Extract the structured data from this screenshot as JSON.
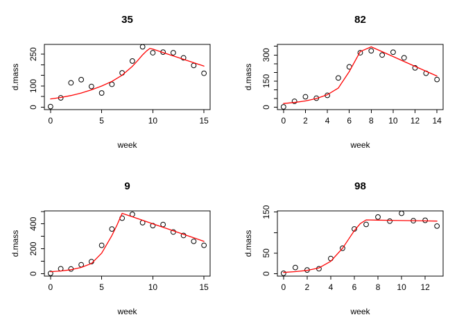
{
  "figure": {
    "background": "#ffffff",
    "rows": 2,
    "cols": 2
  },
  "styles": {
    "point_color": "#000000",
    "fit_line_color": "#ff0000",
    "box_color": "#000000",
    "text_color": "#000000"
  },
  "chart_data": [
    {
      "type": "scatter",
      "title": "35",
      "xlabel": "week",
      "ylabel": "d.mass",
      "grid": false,
      "x_ticks": [
        0,
        5,
        10,
        15
      ],
      "y_ticks": [
        0,
        50,
        100,
        150,
        200,
        250
      ],
      "y_labeled_ticks": [
        0,
        100,
        250
      ],
      "xlim": [
        -0.6,
        15.6
      ],
      "ylim": [
        -11.4,
        296.4
      ],
      "points": {
        "x": [
          0,
          1,
          2,
          3,
          4,
          5,
          6,
          7,
          8,
          9,
          10,
          11,
          12,
          13,
          14,
          15
        ],
        "y": [
          3,
          44,
          115,
          130,
          98,
          67,
          108,
          162,
          218,
          285,
          257,
          260,
          257,
          233,
          197,
          160
        ]
      },
      "fit_line": {
        "x": [
          0,
          1,
          2,
          3,
          4,
          5,
          6,
          7,
          8,
          8.5,
          9,
          9.4,
          9.7,
          10,
          11,
          12,
          13,
          14,
          15
        ],
        "y": [
          39,
          46,
          55,
          67,
          82,
          100,
          122,
          151,
          193,
          219,
          247,
          266,
          277,
          274,
          258,
          242,
          226,
          210,
          194
        ]
      }
    },
    {
      "type": "scatter",
      "title": "82",
      "xlabel": "week",
      "ylabel": "d.mass",
      "grid": false,
      "x_ticks": [
        0,
        2,
        4,
        6,
        8,
        10,
        12,
        14
      ],
      "y_ticks": [
        0,
        50,
        100,
        150,
        200,
        250,
        300,
        350
      ],
      "y_labeled_ticks": [
        0,
        150,
        300
      ],
      "xlim": [
        -0.56,
        14.56
      ],
      "ylim": [
        -13.9,
        360.9
      ],
      "points": {
        "x": [
          0,
          1,
          2,
          3,
          4,
          5,
          6,
          7,
          8,
          9,
          10,
          11,
          12,
          13,
          14
        ],
        "y": [
          2,
          34,
          60,
          52,
          68,
          168,
          232,
          313,
          324,
          300,
          316,
          284,
          226,
          195,
          159
        ]
      },
      "fit_line": {
        "x": [
          0,
          1,
          2,
          3,
          4,
          5,
          6,
          7,
          8,
          9,
          10,
          11,
          12,
          13,
          14
        ],
        "y": [
          21,
          27,
          36,
          50,
          72,
          110,
          205,
          320,
          347,
          319,
          291,
          263,
          235,
          207,
          179
        ]
      }
    },
    {
      "type": "scatter",
      "title": "9",
      "xlabel": "week",
      "ylabel": "d.mass",
      "grid": false,
      "x_ticks": [
        0,
        5,
        10,
        15
      ],
      "y_ticks": [
        0,
        100,
        200,
        300,
        400,
        500
      ],
      "y_labeled_ticks": [
        0,
        200,
        400
      ],
      "xlim": [
        -0.6,
        15.6
      ],
      "ylim": [
        -19.4,
        504.4
      ],
      "points": {
        "x": [
          0,
          1,
          2,
          3,
          4,
          5,
          6,
          7,
          8,
          9,
          10,
          11,
          12,
          13,
          14,
          15
        ],
        "y": [
          3,
          40,
          38,
          72,
          97,
          228,
          359,
          446,
          477,
          410,
          386,
          395,
          335,
          307,
          260,
          228
        ]
      },
      "fit_line": {
        "x": [
          0,
          1,
          2,
          3,
          4,
          5,
          6,
          6.5,
          7,
          8,
          9,
          10,
          11,
          12,
          13,
          14,
          15
        ],
        "y": [
          16,
          22,
          32,
          50,
          82,
          165,
          307,
          390,
          485,
          457,
          429,
          401,
          373,
          345,
          316,
          288,
          260
        ]
      }
    },
    {
      "type": "scatter",
      "title": "98",
      "xlabel": "week",
      "ylabel": "d.mass",
      "grid": false,
      "x_ticks": [
        0,
        2,
        4,
        6,
        8,
        10,
        12
      ],
      "y_ticks": [
        0,
        50,
        100,
        150
      ],
      "y_labeled_ticks": [
        0,
        50,
        150
      ],
      "xlim": [
        -0.52,
        13.52
      ],
      "ylim": [
        -5.9,
        152.9
      ],
      "points": {
        "x": [
          0,
          1,
          2,
          3,
          4,
          5,
          6,
          7,
          8,
          9,
          10,
          11,
          12,
          13
        ],
        "y": [
          1,
          15,
          9,
          12,
          37,
          62,
          109,
          120,
          138,
          128,
          147,
          129,
          130,
          116
        ]
      },
      "fit_line": {
        "x": [
          0,
          1,
          2,
          3,
          4,
          5,
          6,
          6.5,
          7,
          8,
          9,
          10,
          11,
          12,
          13
        ],
        "y": [
          3,
          5,
          8,
          14,
          30,
          62,
          105,
          122,
          131,
          130.5,
          130,
          129.5,
          129,
          128.5,
          128
        ]
      }
    }
  ]
}
